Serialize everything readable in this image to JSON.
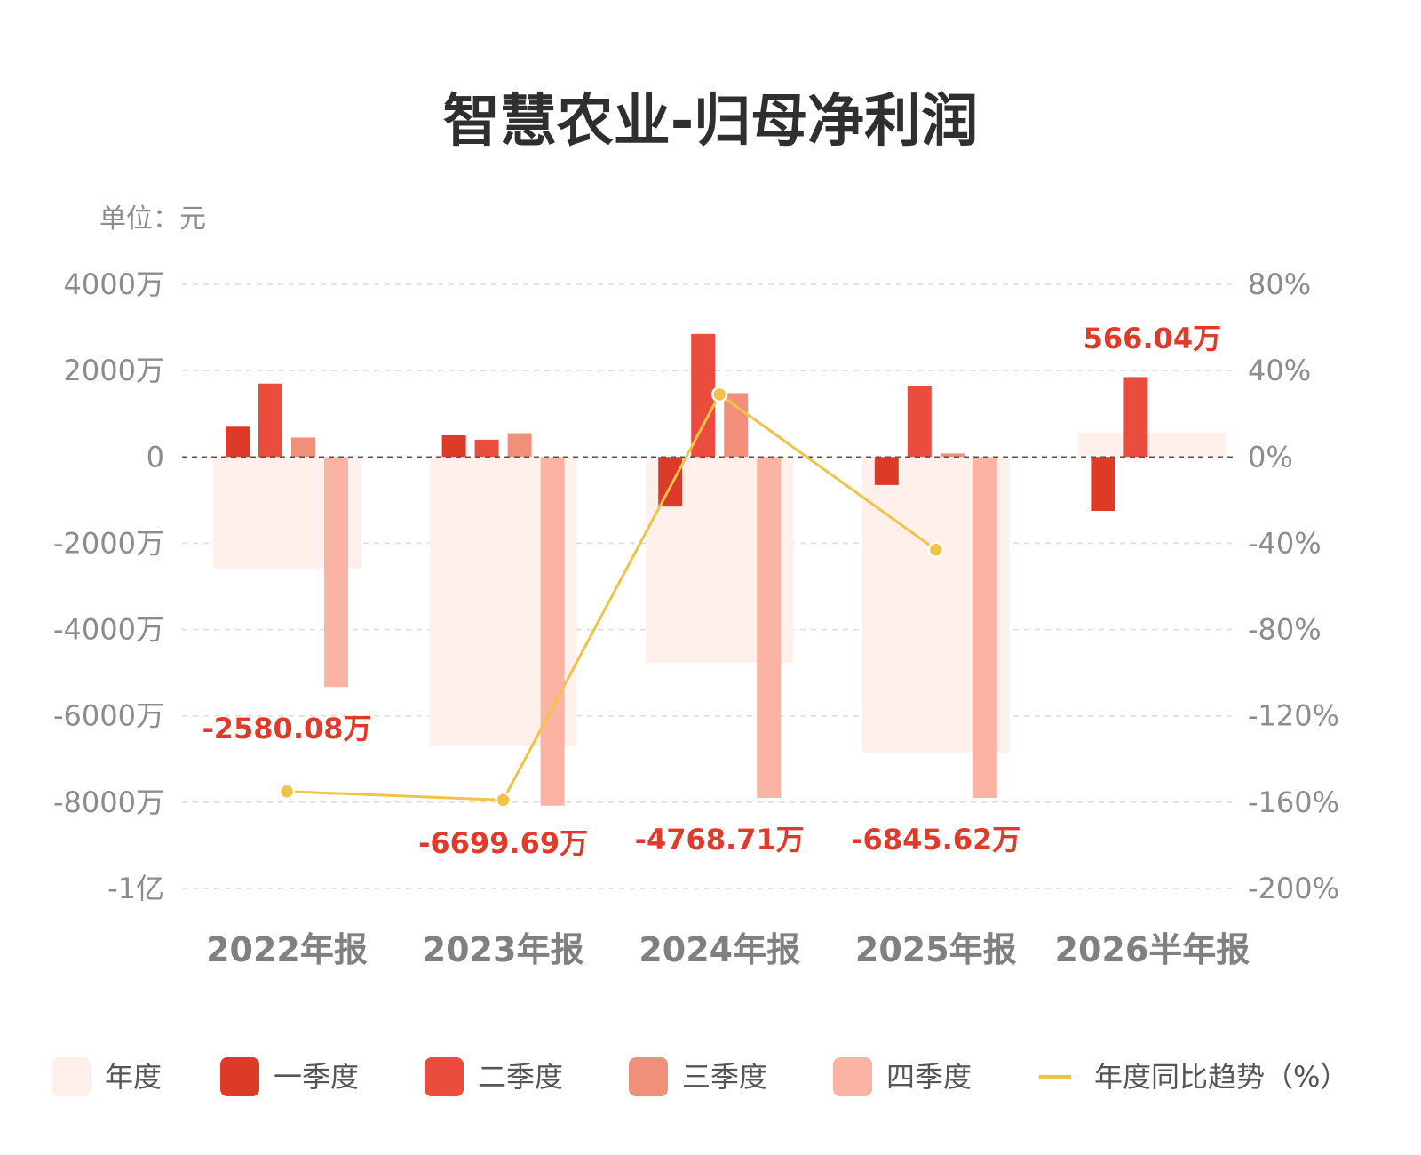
{
  "chart_data": {
    "type": "bar",
    "title": "智慧农业-归母净利润",
    "unit_label": "单位：元",
    "categories": [
      "2022年报",
      "2023年报",
      "2024年报",
      "2025年报",
      "2026半年报"
    ],
    "left_axis": {
      "min": -10000,
      "max": 4000,
      "unit": "万元",
      "ticks": [
        4000,
        2000,
        0,
        -2000,
        -4000,
        -6000,
        -8000,
        -10000
      ],
      "tick_labels": [
        "4000万",
        "2000万",
        "0",
        "-2000万",
        "-4000万",
        "-6000万",
        "-8000万",
        "-1亿"
      ]
    },
    "right_axis": {
      "min": -200,
      "max": 80,
      "unit": "%",
      "ticks": [
        80,
        40,
        0,
        -40,
        -80,
        -120,
        -160,
        -200
      ],
      "tick_labels": [
        "80%",
        "40%",
        "0%",
        "-40%",
        "-80%",
        "-120%",
        "-160%",
        "-200%"
      ]
    },
    "annual": {
      "name": "年度",
      "values": [
        -2580.08,
        -6699.69,
        -4768.71,
        -6845.62,
        566.04
      ],
      "labels": [
        "-2580.08万",
        "-6699.69万",
        "-4768.71万",
        "-6845.62万",
        "566.04万"
      ],
      "color": "#fff0ec"
    },
    "series": [
      {
        "name": "一季度",
        "color": "#de3a28",
        "values": [
          700,
          500,
          -1150,
          -650,
          -1250
        ]
      },
      {
        "name": "二季度",
        "color": "#ea4c3e",
        "values": [
          1700,
          400,
          2850,
          1650,
          1850
        ]
      },
      {
        "name": "三季度",
        "color": "#f1907a",
        "values": [
          450,
          550,
          1480,
          80,
          null
        ]
      },
      {
        "name": "四季度",
        "color": "#fbb4a3",
        "values": [
          -5330,
          -8080,
          -7900,
          -7900,
          null
        ]
      }
    ],
    "line": {
      "name": "年度同比趋势（%）",
      "color": "#f1c24a",
      "values": [
        -155,
        -159,
        29,
        -43,
        null
      ]
    },
    "grid": true,
    "legend_position": "bottom"
  }
}
